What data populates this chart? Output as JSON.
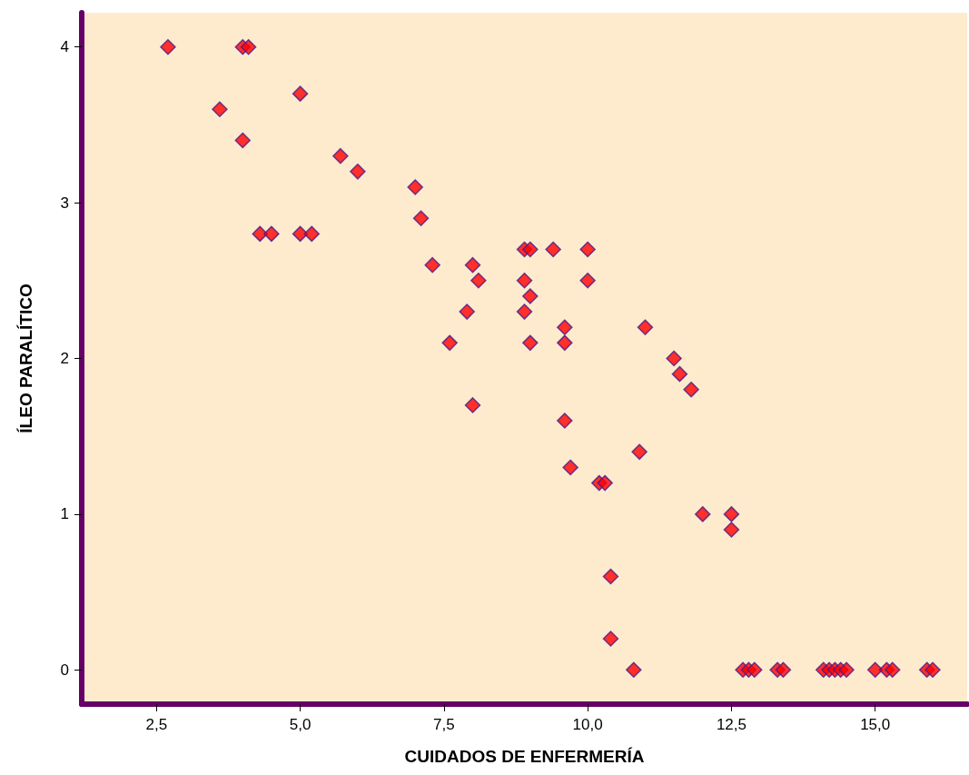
{
  "chart_data": {
    "type": "scatter",
    "xlabel": "CUIDADOS DE ENFERMERÍA",
    "ylabel": "ÍLEO PARALÍTICO",
    "marker": "diamond",
    "grid": false,
    "xlim": [
      1.2,
      16.6
    ],
    "xticks": [
      {
        "value": 2.5,
        "label": "2,5"
      },
      {
        "value": 5,
        "label": "5,0"
      },
      {
        "value": 7.5,
        "label": "7,5"
      },
      {
        "value": 10,
        "label": "10,0"
      },
      {
        "value": 12.5,
        "label": "12,5"
      },
      {
        "value": 15,
        "label": "15,0"
      }
    ],
    "ylim": [
      -0.22,
      4.22
    ],
    "yticks": [
      0,
      1,
      2,
      3,
      4
    ],
    "series": [
      {
        "color": "#ff0000",
        "x": [
          2.7,
          4.0,
          4.1,
          3.6,
          4.0,
          5.0,
          5.7,
          6.0,
          7.0,
          7.1,
          4.3,
          4.5,
          5.0,
          5.2,
          7.3,
          8.9,
          9.0,
          9.4,
          10.0,
          8.0,
          8.1,
          8.9,
          10.0,
          9.0,
          7.9,
          8.9,
          9.6,
          11.0,
          7.6,
          9.0,
          9.6,
          8.0,
          9.6,
          10.9,
          9.7,
          10.2,
          10.3,
          11.5,
          11.6,
          11.8,
          12.0,
          12.5,
          12.5,
          10.4,
          10.4,
          10.8,
          12.7,
          12.8,
          12.9,
          13.3,
          13.4,
          14.1,
          14.2,
          14.3,
          14.4,
          14.5,
          15.0,
          15.2,
          15.3,
          15.9,
          16.0
        ],
        "values": [
          4,
          4,
          4,
          3.6,
          3.4,
          3.7,
          3.3,
          3.2,
          3.1,
          2.9,
          2.8,
          2.8,
          2.8,
          2.8,
          2.6,
          2.7,
          2.7,
          2.7,
          2.7,
          2.6,
          2.5,
          2.5,
          2.5,
          2.4,
          2.3,
          2.3,
          2.2,
          2.2,
          2.1,
          2.1,
          2.1,
          1.7,
          1.6,
          1.4,
          1.3,
          1.2,
          1.2,
          2.0,
          1.9,
          1.8,
          1.0,
          1.0,
          0.9,
          0.6,
          0.2,
          0,
          0,
          0,
          0,
          0,
          0,
          0,
          0,
          0,
          0,
          0,
          0,
          0,
          0,
          0,
          0
        ]
      }
    ]
  }
}
